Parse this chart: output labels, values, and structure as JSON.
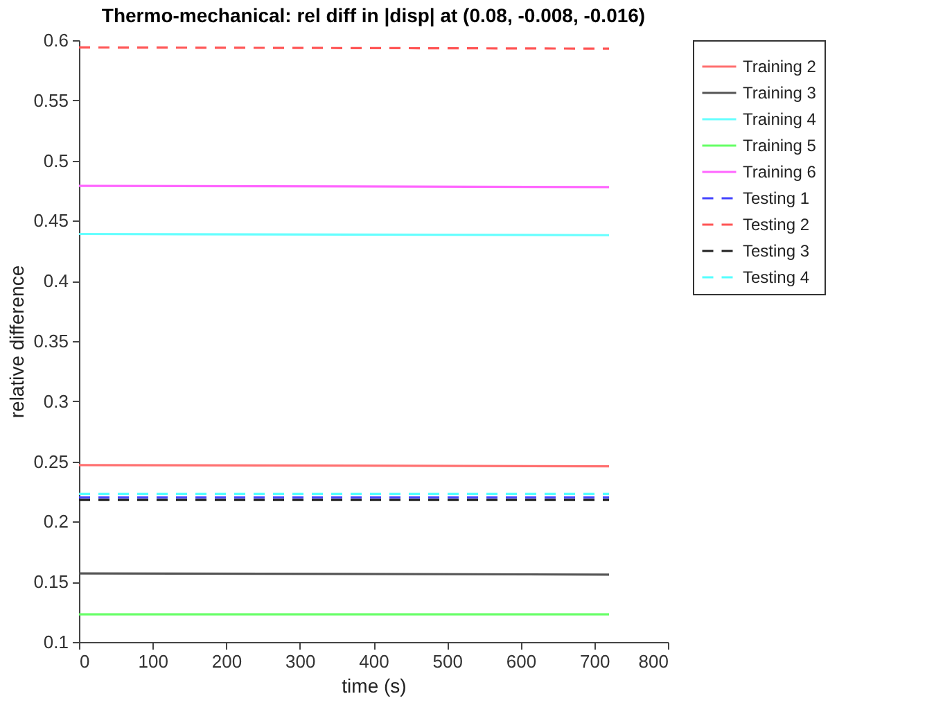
{
  "chart_data": {
    "type": "line",
    "title": "Thermo-mechanical: rel diff in |disp| at (0.08, -0.008, -0.016)",
    "xlabel": "time (s)",
    "ylabel": "relative difference",
    "xlim": [
      0,
      800
    ],
    "ylim": [
      0.1,
      0.6
    ],
    "xticks": [
      0,
      100,
      200,
      300,
      400,
      500,
      600,
      700,
      800
    ],
    "yticks": [
      0.1,
      0.15,
      0.2,
      0.25,
      0.3,
      0.35,
      0.4,
      0.45,
      0.5,
      0.55,
      0.6
    ],
    "grid": false,
    "legend": "top right",
    "marker": "none",
    "x": [
      0,
      720
    ],
    "series": [
      {
        "name": "Training 2",
        "color": "#ff7070",
        "values": [
          0.247,
          0.246
        ],
        "line_style": "solid"
      },
      {
        "name": "Training 3",
        "color": "#555555",
        "values": [
          0.157,
          0.156
        ],
        "line_style": "solid"
      },
      {
        "name": "Training 4",
        "color": "#66ffff",
        "values": [
          0.439,
          0.438
        ],
        "line_style": "solid"
      },
      {
        "name": "Training 5",
        "color": "#66ff66",
        "values": [
          0.123,
          0.123
        ],
        "line_style": "solid"
      },
      {
        "name": "Training 6",
        "color": "#ff66ff",
        "values": [
          0.479,
          0.478
        ],
        "line_style": "solid"
      },
      {
        "name": "Testing 1",
        "color": "#4444ff",
        "values": [
          0.22,
          0.22
        ],
        "line_style": "dashed"
      },
      {
        "name": "Testing 2",
        "color": "#ff5555",
        "values": [
          0.594,
          0.593
        ],
        "line_style": "dashed"
      },
      {
        "name": "Testing 3",
        "color": "#222222",
        "values": [
          0.218,
          0.218
        ],
        "line_style": "dashed"
      },
      {
        "name": "Testing 4",
        "color": "#55ffff",
        "values": [
          0.223,
          0.223
        ],
        "line_style": "dashed"
      }
    ]
  }
}
